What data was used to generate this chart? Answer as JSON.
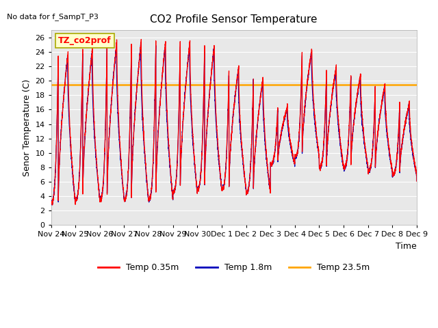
{
  "title": "CO2 Profile Sensor Temperature",
  "ylabel": "Senor Temperature (C)",
  "xlabel": "Time",
  "top_left_text": "No data for f_SampT_P3",
  "legend_box_text": "TZ_co2prof",
  "ylim": [
    0,
    27
  ],
  "yticks": [
    0,
    2,
    4,
    6,
    8,
    10,
    12,
    14,
    16,
    18,
    20,
    22,
    24,
    26
  ],
  "constant_line_value": 19.5,
  "constant_line_color": "#FFA500",
  "line1_color": "#FF0000",
  "line2_color": "#0000BB",
  "background_color": "#E8E8E8",
  "xtick_labels": [
    "Nov 24",
    "Nov 25",
    "Nov 26",
    "Nov 27",
    "Nov 28",
    "Nov 29",
    "Nov 30",
    "Dec 1",
    "Dec 2",
    "Dec 3",
    "Dec 4",
    "Dec 5",
    "Dec 6",
    "Dec 7",
    "Dec 8",
    "Dec 9"
  ],
  "legend_labels": [
    "Temp 0.35m",
    "Temp 1.8m",
    "Temp 23.5m"
  ],
  "legend_colors": [
    "#FF0000",
    "#0000BB",
    "#FFA500"
  ],
  "figsize": [
    6.4,
    4.8
  ],
  "dpi": 100
}
